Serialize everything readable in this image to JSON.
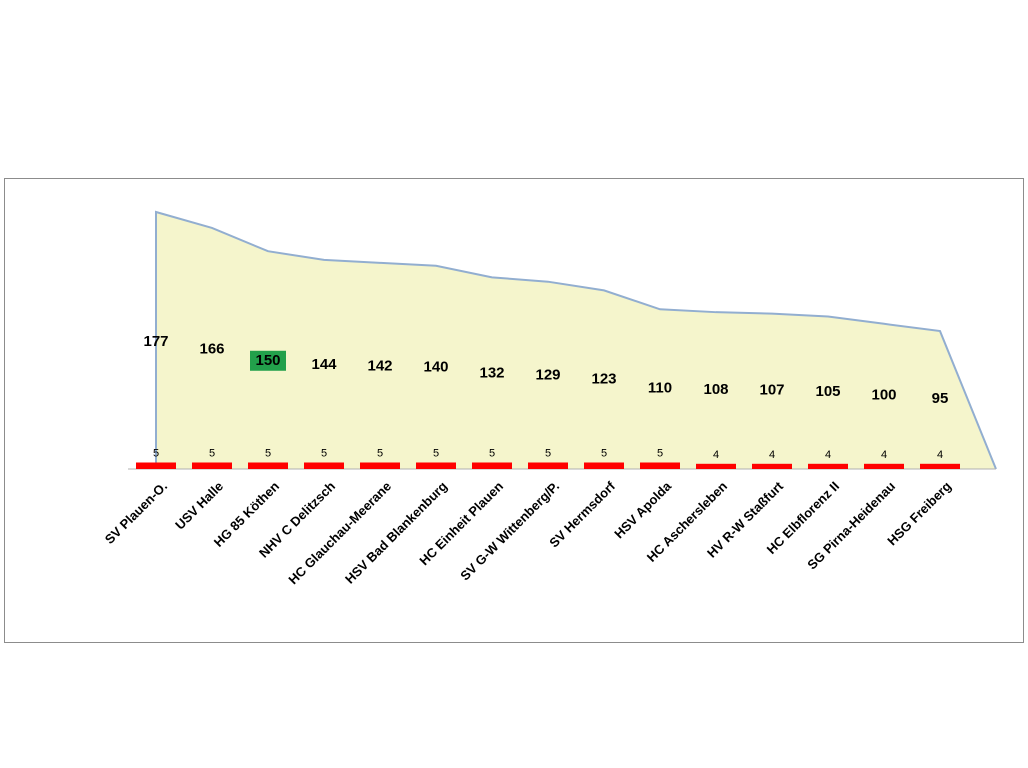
{
  "chart_data": {
    "type": "area",
    "categories": [
      "SV Plauen-O.",
      "USV Halle",
      "HG 85 Köthen",
      "NHV C Delitzsch",
      "HC Glauchau-Meerane",
      "HSV Bad Blankenburg",
      "HC Einheit Plauen",
      "SV G-W Wittenberg/P.",
      "SV Hermsdorf",
      "HSV Apolda",
      "HC Aschersleben",
      "HV R-W Staßfurt",
      "HC Elbflorenz II",
      "SG Pirna-Heidenau",
      "HSG Freiberg"
    ],
    "area_values": [
      177,
      166,
      150,
      144,
      142,
      140,
      132,
      129,
      123,
      110,
      108,
      107,
      105,
      100,
      95
    ],
    "area_labels": [
      "177",
      "166",
      "150",
      "144",
      "142",
      "140",
      "132",
      "129",
      "123",
      "110",
      "108",
      "107",
      "105",
      "100",
      "95"
    ],
    "bar_values": [
      5,
      5,
      5,
      5,
      5,
      5,
      5,
      5,
      5,
      5,
      4,
      4,
      4,
      4,
      4
    ],
    "bar_labels": [
      "5",
      "5",
      "5",
      "5",
      "5",
      "5",
      "5",
      "5",
      "5",
      "5",
      "4",
      "4",
      "4",
      "4",
      "4"
    ],
    "highlight_index": 2,
    "area_ylim": [
      0,
      177
    ],
    "colors": {
      "area_fill": "#f5f5cc",
      "area_line": "#92aed0",
      "bar": "#ff0000",
      "highlight": "#22a04b",
      "frame": "#8c8c8c"
    },
    "grid": false,
    "legend": "none"
  }
}
